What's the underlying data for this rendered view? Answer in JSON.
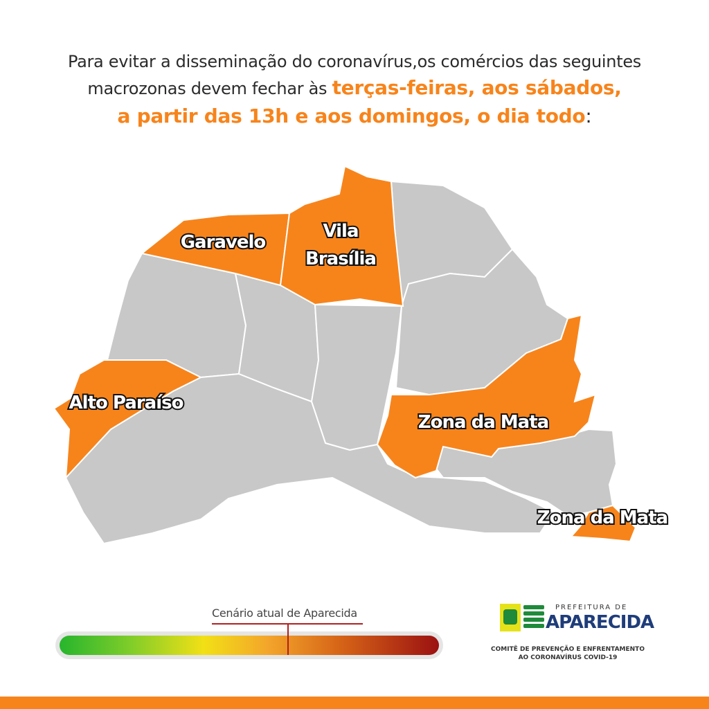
{
  "headline": {
    "line1": "Para evitar a disseminação do coronavírus,os comércios das seguintes",
    "line2_prefix": "macrozonas devem fechar às ",
    "line2_highlight": "terças-feiras, aos sábados,",
    "line3_highlight": "a partir das 13h e aos domingos, o dia todo",
    "line3_suffix": ":"
  },
  "map": {
    "colors": {
      "active": "#f7841b",
      "inactive": "#c8c8c8",
      "border": "#ffffff",
      "outline": "#555555"
    },
    "zones_labeled": [
      {
        "name": "Garavelo",
        "status": "closed"
      },
      {
        "name": "Vila Brasília",
        "line1": "Vila",
        "line2": "Brasília",
        "status": "closed"
      },
      {
        "name": "Alto Paraíso",
        "status": "closed"
      },
      {
        "name": "Zona da Mata",
        "status": "closed"
      },
      {
        "name": "Zona da Mata",
        "status": "closed"
      }
    ]
  },
  "scale": {
    "title": "Cenário atual de Aparecida",
    "current_level_fraction": 0.6
  },
  "logo": {
    "small_text": "PREFEITURA DE",
    "big_text": "APARECIDA",
    "committee_line1": "COMITÊ DE PREVENÇÃO E ENFRENTAMENTO",
    "committee_line2": "AO CORONAVÍRUS COVID-19"
  }
}
